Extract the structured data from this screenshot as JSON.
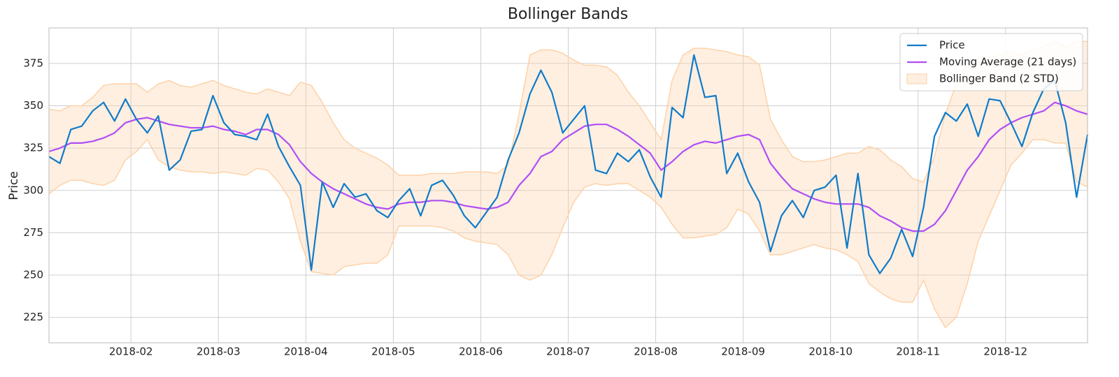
{
  "chart_data": {
    "type": "bollinger",
    "title": "Bollinger Bands",
    "ylabel": "Price",
    "x": [
      "2018-01",
      "2018-01",
      "2018-01",
      "2018-01",
      "2018-01",
      "2018-01",
      "2018-01",
      "2018-01",
      "2018-02",
      "2018-02",
      "2018-02",
      "2018-02",
      "2018-02",
      "2018-02",
      "2018-02",
      "2018-02",
      "2018-03",
      "2018-03",
      "2018-03",
      "2018-03",
      "2018-03",
      "2018-03",
      "2018-03",
      "2018-03",
      "2018-04",
      "2018-04",
      "2018-04",
      "2018-04",
      "2018-04",
      "2018-04",
      "2018-04",
      "2018-04",
      "2018-05",
      "2018-05",
      "2018-05",
      "2018-05",
      "2018-05",
      "2018-05",
      "2018-05",
      "2018-05",
      "2018-06",
      "2018-06",
      "2018-06",
      "2018-06",
      "2018-06",
      "2018-06",
      "2018-06",
      "2018-06",
      "2018-07",
      "2018-07",
      "2018-07",
      "2018-07",
      "2018-07",
      "2018-07",
      "2018-07",
      "2018-07",
      "2018-08",
      "2018-08",
      "2018-08",
      "2018-08",
      "2018-08",
      "2018-08",
      "2018-08",
      "2018-08",
      "2018-09",
      "2018-09",
      "2018-09",
      "2018-09",
      "2018-09",
      "2018-09",
      "2018-09",
      "2018-09",
      "2018-10",
      "2018-10",
      "2018-10",
      "2018-10",
      "2018-10",
      "2018-10",
      "2018-10",
      "2018-10",
      "2018-11",
      "2018-11",
      "2018-11",
      "2018-11",
      "2018-11",
      "2018-11",
      "2018-11",
      "2018-11",
      "2018-12",
      "2018-12",
      "2018-12",
      "2018-12",
      "2018-12",
      "2018-12",
      "2018-12",
      "2018-12"
    ],
    "xticks": [
      "2018-02",
      "2018-03",
      "2018-04",
      "2018-05",
      "2018-06",
      "2018-07",
      "2018-08",
      "2018-09",
      "2018-10",
      "2018-11",
      "2018-12"
    ],
    "ylim": [
      210,
      396
    ],
    "yticks": [
      225,
      250,
      275,
      300,
      325,
      350,
      375
    ],
    "grid": true,
    "legend": "upper right",
    "series": [
      {
        "name": "Price",
        "color": "#0f7bc9",
        "values": [
          320,
          316,
          336,
          338,
          347,
          352,
          341,
          354,
          342,
          334,
          344,
          312,
          318,
          335,
          336,
          356,
          340,
          333,
          332,
          330,
          345,
          326,
          314,
          303,
          253,
          305,
          290,
          304,
          296,
          298,
          288,
          284,
          294,
          301,
          285,
          303,
          306,
          297,
          285,
          278,
          287,
          296,
          318,
          334,
          357,
          371,
          358,
          334,
          342,
          350,
          312,
          310,
          322,
          317,
          324,
          308,
          296,
          349,
          343,
          380,
          355,
          356,
          310,
          322,
          305,
          293,
          264,
          285,
          294,
          284,
          300,
          302,
          309,
          266,
          310,
          262,
          251,
          260,
          277,
          261,
          290,
          332,
          346,
          341,
          351,
          332,
          354,
          353,
          340,
          326,
          346,
          360,
          365,
          340,
          296,
          333
        ]
      },
      {
        "name": "Moving Average (21 days)",
        "color": "#b04ef5",
        "values": [
          323,
          325,
          328,
          328,
          329,
          331,
          334,
          340,
          342,
          343,
          341,
          339,
          338,
          337,
          337,
          338,
          336,
          335,
          333,
          336,
          336,
          333,
          327,
          317,
          310,
          305,
          301,
          298,
          295,
          292,
          290,
          289,
          292,
          293,
          293,
          294,
          294,
          293,
          291,
          290,
          289,
          290,
          293,
          303,
          310,
          320,
          323,
          330,
          334,
          338,
          339,
          339,
          336,
          332,
          327,
          322,
          312,
          317,
          323,
          327,
          329,
          328,
          330,
          332,
          333,
          330,
          316,
          308,
          301,
          298,
          295,
          293,
          292,
          292,
          292,
          290,
          285,
          282,
          278,
          276,
          276,
          280,
          288,
          300,
          312,
          320,
          330,
          336,
          340,
          343,
          345,
          347,
          352,
          350,
          347,
          345
        ]
      }
    ],
    "band": {
      "name": "Bollinger Band (2 STD)",
      "color": "#fdd2a8",
      "upper": [
        348,
        347,
        350,
        350,
        355,
        362,
        363,
        363,
        363,
        358,
        363,
        365,
        362,
        361,
        363,
        365,
        362,
        360,
        358,
        357,
        360,
        358,
        356,
        364,
        362,
        352,
        340,
        330,
        325,
        322,
        319,
        315,
        309,
        309,
        309,
        310,
        310,
        310,
        311,
        311,
        311,
        310,
        315,
        345,
        380,
        383,
        383,
        381,
        377,
        374,
        374,
        373,
        368,
        358,
        350,
        340,
        330,
        365,
        380,
        384,
        384,
        383,
        382,
        380,
        379,
        374,
        342,
        330,
        320,
        317,
        317,
        318,
        320,
        322,
        322,
        326,
        324,
        318,
        314,
        307,
        305,
        320,
        345,
        363,
        375,
        378,
        378,
        380,
        382,
        380,
        383,
        385,
        388,
        385,
        388,
        388
      ],
      "lower": [
        298,
        303,
        306,
        306,
        304,
        303,
        306,
        318,
        323,
        330,
        318,
        314,
        312,
        311,
        311,
        310,
        311,
        310,
        309,
        313,
        312,
        305,
        295,
        270,
        252,
        251,
        250,
        255,
        256,
        257,
        257,
        262,
        279,
        279,
        279,
        279,
        278,
        276,
        272,
        270,
        269,
        268,
        262,
        250,
        247,
        250,
        262,
        278,
        293,
        302,
        304,
        303,
        304,
        304,
        300,
        296,
        290,
        280,
        272,
        272,
        273,
        274,
        278,
        289,
        286,
        276,
        262,
        262,
        264,
        266,
        268,
        266,
        265,
        262,
        258,
        245,
        240,
        236,
        234,
        234,
        247,
        230,
        219,
        225,
        245,
        270,
        285,
        300,
        315,
        322,
        330,
        330,
        328,
        328,
        305,
        302
      ]
    }
  }
}
